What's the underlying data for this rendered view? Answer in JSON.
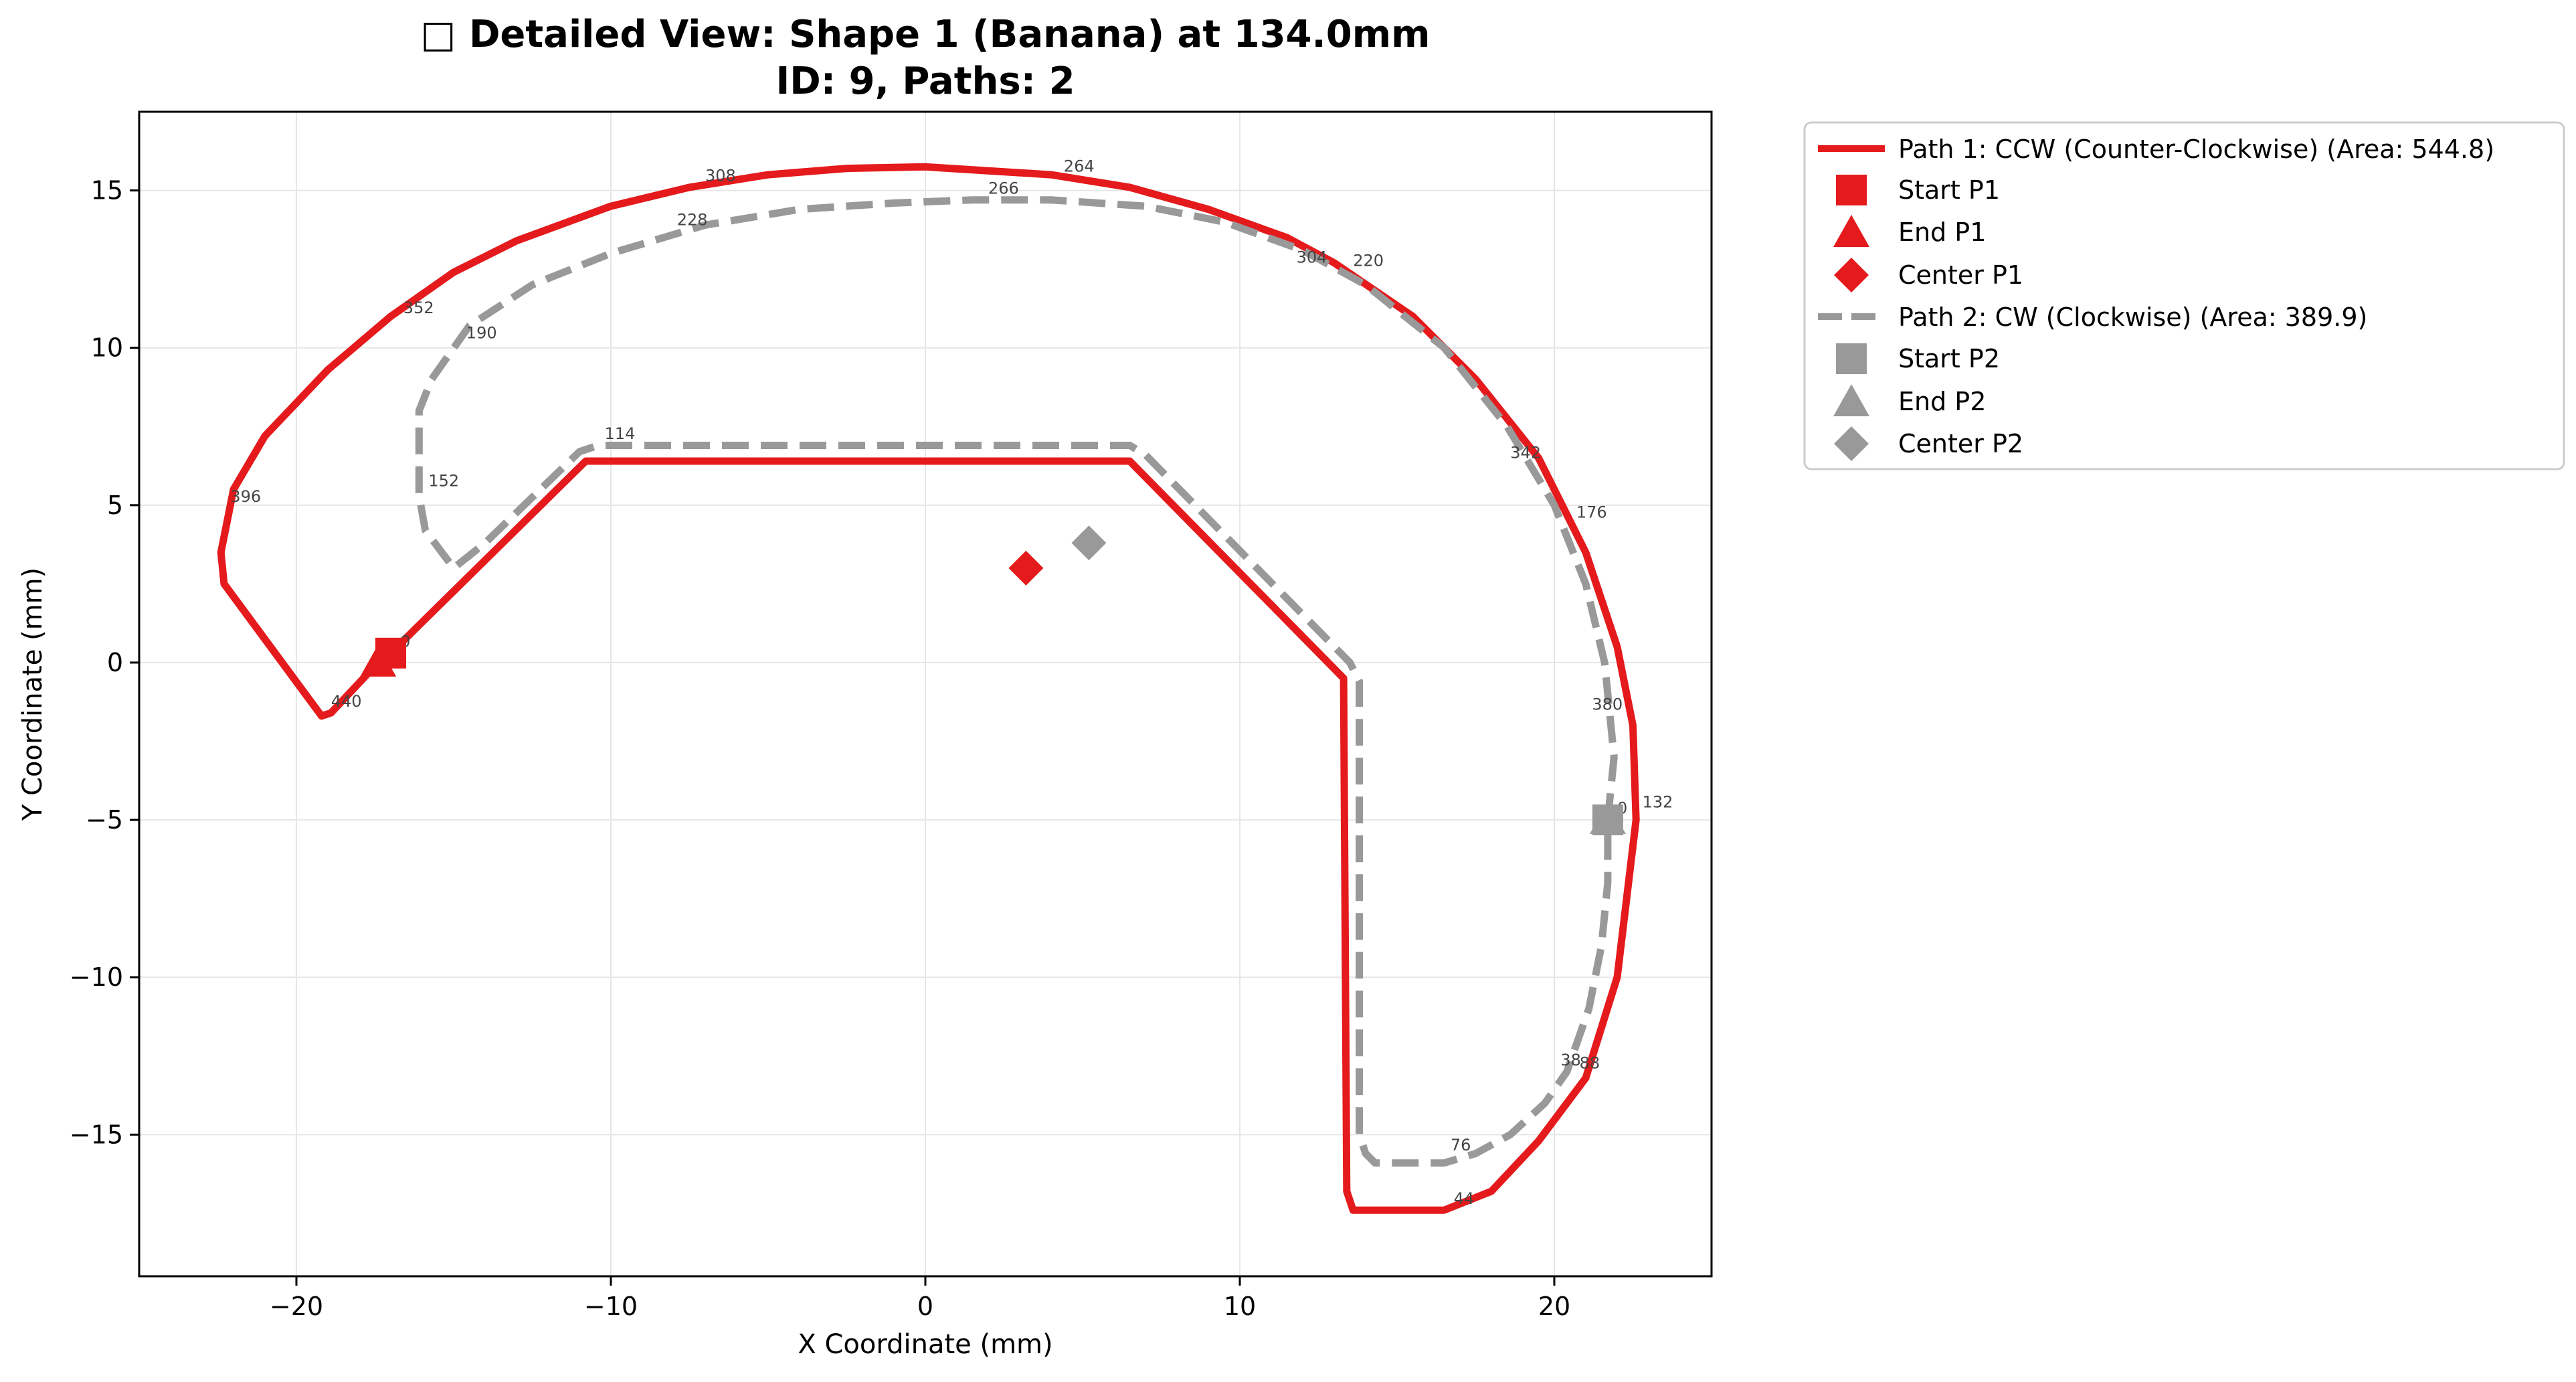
{
  "chart_data": {
    "type": "line",
    "title_line1": "□ Detailed View: Shape 1 (Banana) at 134.0mm",
    "title_line2": "ID: 9, Paths: 2",
    "xlabel": "X Coordinate (mm)",
    "ylabel": "Y Coordinate (mm)",
    "xlim": [
      -25,
      25
    ],
    "ylim": [
      -19.5,
      17.5
    ],
    "xticks": [
      -20,
      -10,
      0,
      10,
      20
    ],
    "yticks": [
      -15,
      -10,
      -5,
      0,
      5,
      10,
      15
    ],
    "grid": true,
    "legend_placement": "outside upper right",
    "series": [
      {
        "name": "Path 1: CCW (Counter-Clockwise) (Area: 544.8)",
        "color": "#e41a1c",
        "style": "solid",
        "start_label": "Start P1",
        "end_label": "End P1",
        "center_label": "Center P1",
        "start": [
          -17.0,
          0.3
        ],
        "end": [
          -17.4,
          0.0
        ],
        "center": [
          3.2,
          3.0
        ],
        "points": [
          [
            -17.0,
            0.3
          ],
          [
            -10.8,
            6.4
          ],
          [
            6.5,
            6.4
          ],
          [
            13.3,
            -0.5
          ],
          [
            13.4,
            -16.8
          ],
          [
            13.6,
            -17.4
          ],
          [
            16.5,
            -17.4
          ],
          [
            18.0,
            -16.8
          ],
          [
            19.5,
            -15.2
          ],
          [
            21.0,
            -13.2
          ],
          [
            22.0,
            -10.0
          ],
          [
            22.6,
            -5.0
          ],
          [
            22.5,
            -2.0
          ],
          [
            22.0,
            0.5
          ],
          [
            21.0,
            3.5
          ],
          [
            19.5,
            6.5
          ],
          [
            17.5,
            9.0
          ],
          [
            15.5,
            11.0
          ],
          [
            13.0,
            12.7
          ],
          [
            11.5,
            13.5
          ],
          [
            9.0,
            14.4
          ],
          [
            6.5,
            15.1
          ],
          [
            4.0,
            15.5
          ],
          [
            0.0,
            15.75
          ],
          [
            -2.5,
            15.7
          ],
          [
            -5.0,
            15.5
          ],
          [
            -7.5,
            15.1
          ],
          [
            -10.0,
            14.5
          ],
          [
            -13.0,
            13.4
          ],
          [
            -15.0,
            12.4
          ],
          [
            -17.0,
            11.0
          ],
          [
            -19.0,
            9.3
          ],
          [
            -21.0,
            7.2
          ],
          [
            -22.0,
            5.5
          ],
          [
            -22.4,
            3.5
          ],
          [
            -22.3,
            2.5
          ],
          [
            -19.2,
            -1.7
          ],
          [
            -18.9,
            -1.6
          ],
          [
            -17.4,
            0.0
          ]
        ],
        "point_labels": [
          {
            "text": "0",
            "x": -16.7,
            "y": 0.5
          },
          {
            "text": "44",
            "x": 16.8,
            "y": -17.2
          },
          {
            "text": "88",
            "x": 20.8,
            "y": -12.9
          },
          {
            "text": "132",
            "x": 22.8,
            "y": -4.6
          },
          {
            "text": "176",
            "x": 20.7,
            "y": 4.6
          },
          {
            "text": "220",
            "x": 13.6,
            "y": 12.6
          },
          {
            "text": "264",
            "x": 4.4,
            "y": 15.6
          },
          {
            "text": "308",
            "x": -7.0,
            "y": 15.3
          },
          {
            "text": "352",
            "x": -16.6,
            "y": 11.1
          },
          {
            "text": "396",
            "x": -22.1,
            "y": 5.1
          },
          {
            "text": "440",
            "x": -18.9,
            "y": -1.4
          }
        ]
      },
      {
        "name": "Path 2: CW (Clockwise) (Area: 389.9)",
        "color": "#999999",
        "style": "dashed",
        "start_label": "Start P2",
        "end_label": "End P2",
        "center_label": "Center P2",
        "start": [
          21.7,
          -5.0
        ],
        "end": [
          21.7,
          -5.0
        ],
        "center": [
          5.2,
          3.8
        ],
        "points": [
          [
            21.7,
            -5.0
          ],
          [
            21.9,
            -3.0
          ],
          [
            21.6,
            0.0
          ],
          [
            21.0,
            2.5
          ],
          [
            20.0,
            5.0
          ],
          [
            18.5,
            7.5
          ],
          [
            16.5,
            10.0
          ],
          [
            14.0,
            12.0
          ],
          [
            12.0,
            13.1
          ],
          [
            9.5,
            14.0
          ],
          [
            7.0,
            14.5
          ],
          [
            4.0,
            14.7
          ],
          [
            1.5,
            14.7
          ],
          [
            -1.0,
            14.6
          ],
          [
            -4.0,
            14.4
          ],
          [
            -7.0,
            13.9
          ],
          [
            -10.0,
            13.0
          ],
          [
            -12.5,
            12.0
          ],
          [
            -14.5,
            10.7
          ],
          [
            -15.7,
            9.0
          ],
          [
            -16.1,
            8.0
          ],
          [
            -16.1,
            5.3
          ],
          [
            -15.9,
            4.2
          ],
          [
            -15.0,
            3.0
          ],
          [
            -14.0,
            3.8
          ],
          [
            -11.0,
            6.7
          ],
          [
            -10.4,
            6.9
          ],
          [
            6.5,
            6.9
          ],
          [
            7.0,
            6.6
          ],
          [
            13.5,
            0.0
          ],
          [
            13.8,
            -0.6
          ],
          [
            13.8,
            -15.0
          ],
          [
            14.0,
            -15.6
          ],
          [
            14.3,
            -15.9
          ],
          [
            16.5,
            -15.9
          ],
          [
            17.5,
            -15.6
          ],
          [
            18.6,
            -15.0
          ],
          [
            19.7,
            -14.0
          ],
          [
            20.4,
            -13.0
          ],
          [
            21.1,
            -11.0
          ],
          [
            21.5,
            -9.0
          ],
          [
            21.7,
            -7.0
          ],
          [
            21.7,
            -5.0
          ]
        ],
        "point_labels": [
          {
            "text": "0",
            "x": 22.0,
            "y": -4.8
          },
          {
            "text": "38",
            "x": 20.2,
            "y": -12.8
          },
          {
            "text": "76",
            "x": 16.7,
            "y": -15.5
          },
          {
            "text": "114",
            "x": -10.2,
            "y": 7.1
          },
          {
            "text": "152",
            "x": -15.8,
            "y": 5.6
          },
          {
            "text": "190",
            "x": -14.6,
            "y": 10.3
          },
          {
            "text": "228",
            "x": -7.9,
            "y": 13.9
          },
          {
            "text": "266",
            "x": 2.0,
            "y": 14.9
          },
          {
            "text": "304",
            "x": 11.8,
            "y": 12.7
          },
          {
            "text": "342",
            "x": 18.6,
            "y": 6.5
          },
          {
            "text": "380",
            "x": 21.2,
            "y": -1.5
          }
        ]
      }
    ]
  }
}
